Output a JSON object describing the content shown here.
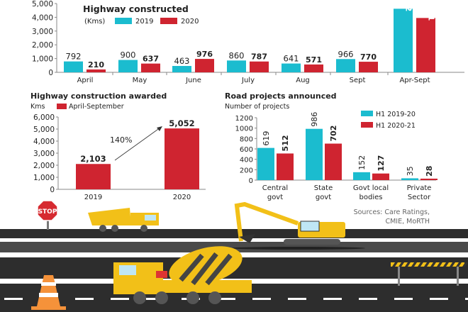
{
  "colors": {
    "teal": "#1bbccf",
    "red": "#cf2430",
    "axis": "#888888",
    "road": "#2d2d2d",
    "road_light": "#4a4a4a",
    "yellow": "#f2c018"
  },
  "chart_data": [
    {
      "type": "bar",
      "title": "Highway constructed",
      "unit": "(Kms)",
      "categories": [
        "April",
        "May",
        "June",
        "July",
        "Aug",
        "Sept",
        "Apr-Sept"
      ],
      "series": [
        {
          "name": "2019",
          "values": [
            792,
            900,
            463,
            860,
            641,
            966,
            4622
          ]
        },
        {
          "name": "2020",
          "values": [
            210,
            637,
            976,
            787,
            571,
            770,
            3951
          ]
        }
      ],
      "data_labels": [
        [
          "792",
          "900",
          "463",
          "860",
          "641",
          "966",
          "4,622"
        ],
        [
          "210",
          "637",
          "976",
          "787",
          "571",
          "770",
          "3,951"
        ]
      ],
      "yticks": [
        "0",
        "1,000",
        "2,000",
        "3,000",
        "4,000",
        "5,000"
      ],
      "ylim": [
        0,
        5000
      ],
      "legend": "top"
    },
    {
      "type": "bar",
      "title": "Highway construction awarded",
      "unit": "Kms",
      "categories": [
        "2019",
        "2020"
      ],
      "series": [
        {
          "name": "April-September",
          "values": [
            2103,
            5052
          ]
        }
      ],
      "data_labels": [
        "2,103",
        "5,052"
      ],
      "annotation": "140%",
      "yticks": [
        "0",
        "1,000",
        "2,000",
        "3,000",
        "4,000",
        "5,000",
        "6,000"
      ],
      "ylim": [
        0,
        6000
      ],
      "legend": "top"
    },
    {
      "type": "bar",
      "title": "Road projects announced",
      "ylabel": "Number of projects",
      "categories": [
        [
          "Central",
          "govt"
        ],
        [
          "State",
          "govt"
        ],
        [
          "Govt local",
          "bodies"
        ],
        [
          "Private",
          "Sector"
        ]
      ],
      "series": [
        {
          "name": "H1 2019-20",
          "values": [
            619,
            986,
            152,
            35
          ]
        },
        {
          "name": "H1 2020-21",
          "values": [
            512,
            702,
            127,
            28
          ]
        }
      ],
      "yticks": [
        "0",
        "200",
        "400",
        "600",
        "800",
        "1000",
        "1200"
      ],
      "ylim": [
        0,
        1200
      ],
      "legend": "top-right"
    }
  ],
  "sources": [
    "Sources: Care Ratings,",
    "CMIE, MoRTH"
  ],
  "stop_sign": "STOP"
}
